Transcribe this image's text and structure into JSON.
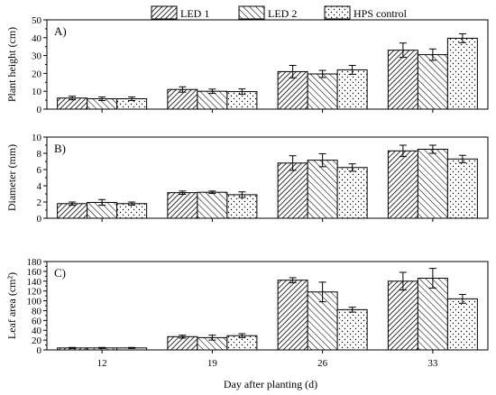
{
  "chart_data": {
    "type": "bar",
    "xlabel": "Day after planting (d)",
    "categories": [
      "12",
      "19",
      "26",
      "33"
    ],
    "legend": {
      "placement": "top-center",
      "entries": [
        "LED 1",
        "LED 2",
        "HPS control"
      ]
    },
    "series_styles": [
      {
        "name": "LED 1",
        "pattern": "forward-diagonal-dense"
      },
      {
        "name": "LED 2",
        "pattern": "backward-diagonal"
      },
      {
        "name": "HPS control",
        "pattern": "dots"
      }
    ],
    "panels": [
      {
        "panel_label": "A)",
        "ylabel": "Plant height (cm)",
        "ylim": [
          0,
          50
        ],
        "yticks": [
          0,
          10,
          20,
          30,
          40,
          50
        ],
        "series": [
          {
            "name": "LED 1",
            "values": [
              6.2,
              11.0,
              21.0,
              33.0
            ],
            "errors": [
              1.0,
              1.5,
              3.5,
              4.0
            ]
          },
          {
            "name": "LED 2",
            "values": [
              5.8,
              10.0,
              19.7,
              30.5
            ],
            "errors": [
              1.0,
              1.2,
              2.0,
              3.2
            ]
          },
          {
            "name": "HPS control",
            "values": [
              5.8,
              9.8,
              22.0,
              39.7
            ],
            "errors": [
              1.0,
              1.5,
              2.5,
              2.5
            ]
          }
        ]
      },
      {
        "panel_label": "B)",
        "ylabel": "Diameter (mm)",
        "ylim": [
          0,
          10
        ],
        "yticks": [
          0,
          2,
          4,
          6,
          8,
          10
        ],
        "series": [
          {
            "name": "LED 1",
            "values": [
              1.8,
              3.15,
              6.8,
              8.3
            ],
            "errors": [
              0.2,
              0.2,
              0.9,
              0.7
            ]
          },
          {
            "name": "LED 2",
            "values": [
              1.95,
              3.2,
              7.15,
              8.5
            ],
            "errors": [
              0.35,
              0.15,
              0.8,
              0.5
            ]
          },
          {
            "name": "HPS control",
            "values": [
              1.8,
              2.9,
              6.25,
              7.3
            ],
            "errors": [
              0.2,
              0.35,
              0.45,
              0.45
            ]
          }
        ]
      },
      {
        "panel_label": "C)",
        "ylabel": "Leaf area (cm²)",
        "ylim": [
          0,
          180
        ],
        "yticks": [
          0,
          20,
          40,
          60,
          80,
          100,
          120,
          140,
          160,
          180
        ],
        "series": [
          {
            "name": "LED 1",
            "values": [
              4,
              27,
              142,
              140
            ],
            "errors": [
              1,
              3,
              5,
              18
            ]
          },
          {
            "name": "LED 2",
            "values": [
              4,
              25,
              118,
              146
            ],
            "errors": [
              1,
              5,
              20,
              20
            ]
          },
          {
            "name": "HPS control",
            "values": [
              4,
              29,
              82,
              104
            ],
            "errors": [
              1,
              4,
              5,
              9
            ]
          }
        ]
      }
    ]
  }
}
